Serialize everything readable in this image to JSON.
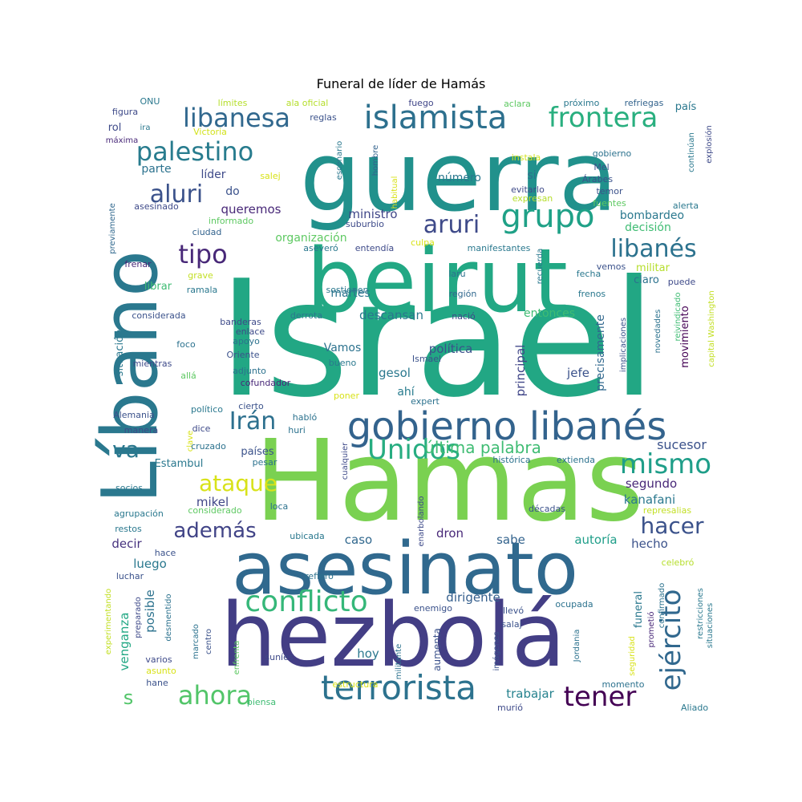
{
  "chart_data": {
    "type": "wordcloud",
    "title": "Funeral de líder de Hamás",
    "words": [
      {
        "text": "Israel",
        "weight": 100,
        "color": "#22a784"
      },
      {
        "text": "Hamas",
        "weight": 96,
        "color": "#7ad151"
      },
      {
        "text": "guerra",
        "weight": 90,
        "color": "#21918c"
      },
      {
        "text": "beirut",
        "weight": 86,
        "color": "#22a884"
      },
      {
        "text": "hezbolá",
        "weight": 84,
        "color": "#433e85"
      },
      {
        "text": "Líbano",
        "weight": 78,
        "color": "#2a788e"
      },
      {
        "text": "asesinato",
        "weight": 72,
        "color": "#30698e"
      },
      {
        "text": "gobierno libanés",
        "weight": 42,
        "color": "#33638d"
      },
      {
        "text": "terrorista",
        "weight": 40,
        "color": "#2c728e"
      },
      {
        "text": "islamista",
        "weight": 38,
        "color": "#2d708e"
      },
      {
        "text": "grupo",
        "weight": 36,
        "color": "#1fa187"
      },
      {
        "text": "conflicto",
        "weight": 33,
        "color": "#35b779"
      },
      {
        "text": "frontera",
        "weight": 32,
        "color": "#29af7f"
      },
      {
        "text": "libanesa",
        "weight": 31,
        "color": "#31688e"
      },
      {
        "text": "palestino",
        "weight": 31,
        "color": "#287c8e"
      },
      {
        "text": "Unidos",
        "weight": 31,
        "color": "#27ad81"
      },
      {
        "text": "mismo",
        "weight": 31,
        "color": "#1f9e89"
      },
      {
        "text": "ahora",
        "weight": 30,
        "color": "#52c569"
      },
      {
        "text": "tener",
        "weight": 30,
        "color": "#440154"
      },
      {
        "text": "ejército",
        "weight": 30,
        "color": "#31688e"
      },
      {
        "text": "aluri",
        "weight": 28,
        "color": "#3b528b"
      },
      {
        "text": "aruri",
        "weight": 28,
        "color": "#3e4a89"
      },
      {
        "text": "tipo",
        "weight": 28,
        "color": "#482878"
      },
      {
        "text": "libanés",
        "weight": 27,
        "color": "#2c728e"
      },
      {
        "text": "Irán",
        "weight": 27,
        "color": "#2d708e"
      },
      {
        "text": "va",
        "weight": 27,
        "color": "#2a788e"
      },
      {
        "text": "ataque",
        "weight": 26,
        "color": "#d8e219"
      },
      {
        "text": "hacer",
        "weight": 26,
        "color": "#3b528b"
      },
      {
        "text": "además",
        "weight": 24,
        "color": "#414487"
      },
      {
        "text": "s",
        "weight": 24,
        "color": "#52c569"
      },
      {
        "text": "última palabra",
        "weight": 20,
        "color": "#3fbc73"
      },
      {
        "text": "sucesor",
        "weight": 16,
        "color": "#3b528b"
      },
      {
        "text": "segundo",
        "weight": 15,
        "color": "#482878"
      },
      {
        "text": "kanafani",
        "weight": 15,
        "color": "#2a788e"
      },
      {
        "text": "hecho",
        "weight": 15,
        "color": "#3b528b"
      },
      {
        "text": "autoría",
        "weight": 15,
        "color": "#1f9e89"
      },
      {
        "text": "dron",
        "weight": 15,
        "color": "#482878"
      },
      {
        "text": "caso",
        "weight": 15,
        "color": "#31688e"
      },
      {
        "text": "sabe",
        "weight": 15,
        "color": "#33638d"
      },
      {
        "text": "dirigente",
        "weight": 15,
        "color": "#355f8d"
      },
      {
        "text": "mikel",
        "weight": 15,
        "color": "#404688"
      },
      {
        "text": "decir",
        "weight": 15,
        "color": "#46327e"
      },
      {
        "text": "luego",
        "weight": 15,
        "color": "#2a788e"
      },
      {
        "text": "posible",
        "weight": 15,
        "color": "#2c728e"
      },
      {
        "text": "venganza",
        "weight": 15,
        "color": "#22a884"
      },
      {
        "text": "hoy",
        "weight": 15,
        "color": "#2a788e"
      },
      {
        "text": "trabajar",
        "weight": 15,
        "color": "#26828e"
      },
      {
        "text": "aumenta",
        "weight": 12,
        "color": "#3b528b"
      },
      {
        "text": "gesol",
        "weight": 15,
        "color": "#2a788e"
      },
      {
        "text": "ahí",
        "weight": 14,
        "color": "#287c8e"
      },
      {
        "text": "política",
        "weight": 15,
        "color": "#3b528b"
      },
      {
        "text": "Vamos",
        "weight": 14,
        "color": "#2c728e"
      },
      {
        "text": "descansan",
        "weight": 15,
        "color": "#2a788e"
      },
      {
        "text": "entonces",
        "weight": 14,
        "color": "#3fbc73"
      },
      {
        "text": "martes",
        "weight": 14,
        "color": "#2c728e"
      },
      {
        "text": "ministro",
        "weight": 15,
        "color": "#404688"
      },
      {
        "text": "queremos",
        "weight": 15,
        "color": "#482878"
      },
      {
        "text": "organización",
        "weight": 14,
        "color": "#5ec962"
      },
      {
        "text": "número",
        "weight": 14,
        "color": "#2a788e"
      },
      {
        "text": "si",
        "weight": 14,
        "color": "#2d708e"
      },
      {
        "text": "líder",
        "weight": 14,
        "color": "#3e4a89"
      },
      {
        "text": "parte",
        "weight": 14,
        "color": "#2c728e"
      },
      {
        "text": "do",
        "weight": 14,
        "color": "#3b528b"
      },
      {
        "text": "principal",
        "weight": 15,
        "color": "#404688"
      },
      {
        "text": "precisamente",
        "weight": 14,
        "color": "#31688e"
      },
      {
        "text": "movimiento",
        "weight": 13,
        "color": "#440154"
      },
      {
        "text": "jefe",
        "weight": 15,
        "color": "#3b528b"
      },
      {
        "text": "decisión",
        "weight": 14,
        "color": "#3fbc73"
      },
      {
        "text": "bombardeo",
        "weight": 14,
        "color": "#2a788e"
      },
      {
        "text": "militar",
        "weight": 13,
        "color": "#b5de2b"
      },
      {
        "text": "claro",
        "weight": 13,
        "color": "#2c728e"
      },
      {
        "text": "librar",
        "weight": 13,
        "color": "#3fbc73"
      },
      {
        "text": "Estambul",
        "weight": 13,
        "color": "#2a788e"
      },
      {
        "text": "países",
        "weight": 13,
        "color": "#3b528b"
      },
      {
        "text": "funeral",
        "weight": 13,
        "color": "#2a788e"
      },
      {
        "text": "situación",
        "weight": 13,
        "color": "#2a788e"
      },
      {
        "text": "considerada",
        "weight": 11,
        "color": "#3b528b"
      },
      {
        "text": "mientras",
        "weight": 11,
        "color": "#3e4a89"
      },
      {
        "text": "frenar",
        "weight": 11,
        "color": "#482878"
      },
      {
        "text": "ramala",
        "weight": 11,
        "color": "#2a788e"
      },
      {
        "text": "grave",
        "weight": 11,
        "color": "#c2df23"
      },
      {
        "text": "ciudad",
        "weight": 11,
        "color": "#33638d"
      },
      {
        "text": "asesinado",
        "weight": 11,
        "color": "#3e4a89"
      },
      {
        "text": "informado",
        "weight": 11,
        "color": "#5ec962"
      },
      {
        "text": "previamente",
        "weight": 10,
        "color": "#31688e"
      },
      {
        "text": "figura",
        "weight": 11,
        "color": "#3e4a89"
      },
      {
        "text": "rol",
        "weight": 13,
        "color": "#3e4a89"
      },
      {
        "text": "ira",
        "weight": 10,
        "color": "#2a788e"
      },
      {
        "text": "máxima",
        "weight": 10,
        "color": "#482878"
      },
      {
        "text": "Victoria",
        "weight": 11,
        "color": "#d2e21b"
      },
      {
        "text": "ONU",
        "weight": 11,
        "color": "#2a788e"
      },
      {
        "text": "límites",
        "weight": 11,
        "color": "#b5de2b"
      },
      {
        "text": "ala oficial",
        "weight": 11,
        "color": "#b5de2b"
      },
      {
        "text": "reglas",
        "weight": 11,
        "color": "#3b528b"
      },
      {
        "text": "fuego",
        "weight": 11,
        "color": "#404688"
      },
      {
        "text": "aclara",
        "weight": 11,
        "color": "#5ec962"
      },
      {
        "text": "próximo",
        "weight": 11,
        "color": "#2a788e"
      },
      {
        "text": "refriegas",
        "weight": 11,
        "color": "#33638d"
      },
      {
        "text": "país",
        "weight": 13,
        "color": "#2a788e"
      },
      {
        "text": "continúan",
        "weight": 10,
        "color": "#2a788e"
      },
      {
        "text": "explosión",
        "weight": 10,
        "color": "#3e4a89"
      },
      {
        "text": "alerta",
        "weight": 11,
        "color": "#2a788e"
      },
      {
        "text": "Árabes",
        "weight": 11,
        "color": "#3b528b"
      },
      {
        "text": "Mel",
        "weight": 11,
        "color": "#3b528b"
      },
      {
        "text": "gobierno",
        "weight": 11,
        "color": "#2c728e"
      },
      {
        "text": "temor",
        "weight": 11,
        "color": "#3b528b"
      },
      {
        "text": "fuentes",
        "weight": 11,
        "color": "#5ec962"
      },
      {
        "text": "instala",
        "weight": 11,
        "color": "#d2e21b"
      },
      {
        "text": "evitarlo",
        "weight": 11,
        "color": "#3e4a89"
      },
      {
        "text": "expresan",
        "weight": 11,
        "color": "#b5de2b"
      },
      {
        "text": "escenario",
        "weight": 10,
        "color": "#2a788e"
      },
      {
        "text": "hombre",
        "weight": 10,
        "color": "#33638d"
      },
      {
        "text": "habitual",
        "weight": 10,
        "color": "#d8e219"
      },
      {
        "text": "suburbio",
        "weight": 11,
        "color": "#3e4a89"
      },
      {
        "text": "salej",
        "weight": 11,
        "color": "#d8e219"
      },
      {
        "text": "culpa",
        "weight": 11,
        "color": "#d8e219"
      },
      {
        "text": "aseveró",
        "weight": 11,
        "color": "#2a788e"
      },
      {
        "text": "entendía",
        "weight": 11,
        "color": "#3e4a89"
      },
      {
        "text": "manifestantes",
        "weight": 11,
        "color": "#2a788e"
      },
      {
        "text": "recuerda",
        "weight": 10,
        "color": "#2a788e"
      },
      {
        "text": "laru",
        "weight": 11,
        "color": "#2c728e"
      },
      {
        "text": "región",
        "weight": 11,
        "color": "#31688e"
      },
      {
        "text": "sostienen",
        "weight": 11,
        "color": "#2a788e"
      },
      {
        "text": "nació",
        "weight": 11,
        "color": "#3e4a89"
      },
      {
        "text": "derrota",
        "weight": 11,
        "color": "#2a788e"
      },
      {
        "text": "fecha",
        "weight": 11,
        "color": "#2a788e"
      },
      {
        "text": "vemos",
        "weight": 11,
        "color": "#3b528b"
      },
      {
        "text": "frenos",
        "weight": 11,
        "color": "#2a788e"
      },
      {
        "text": "puede",
        "weight": 11,
        "color": "#3e4a89"
      },
      {
        "text": "capital Washington",
        "weight": 10,
        "color": "#c2df23"
      },
      {
        "text": "reivindicado",
        "weight": 10,
        "color": "#3fbc73"
      },
      {
        "text": "novedades",
        "weight": 10,
        "color": "#2c728e"
      },
      {
        "text": "implicaciones",
        "weight": 10,
        "color": "#3b528b"
      },
      {
        "text": "banderas",
        "weight": 11,
        "color": "#3e4a89"
      },
      {
        "text": "enlace",
        "weight": 11,
        "color": "#3e4a89"
      },
      {
        "text": "apoyo",
        "weight": 11,
        "color": "#2c728e"
      },
      {
        "text": "Oriente",
        "weight": 11,
        "color": "#3b528b"
      },
      {
        "text": "foco",
        "weight": 11,
        "color": "#2c728e"
      },
      {
        "text": "allá",
        "weight": 11,
        "color": "#5ec962"
      },
      {
        "text": "adjunto",
        "weight": 11,
        "color": "#2c728e"
      },
      {
        "text": "cofundador",
        "weight": 11,
        "color": "#482878"
      },
      {
        "text": "Ismael",
        "weight": 11,
        "color": "#3b528b"
      },
      {
        "text": "bueno",
        "weight": 11,
        "color": "#2a788e"
      },
      {
        "text": "poner",
        "weight": 11,
        "color": "#d8e219"
      },
      {
        "text": "expert",
        "weight": 11,
        "color": "#2c728e"
      },
      {
        "text": "político",
        "weight": 11,
        "color": "#2a788e"
      },
      {
        "text": "Alemania",
        "weight": 11,
        "color": "#3b528b"
      },
      {
        "text": "habló",
        "weight": 11,
        "color": "#2c728e"
      },
      {
        "text": "cierto",
        "weight": 11,
        "color": "#3b528b"
      },
      {
        "text": "manera",
        "weight": 11,
        "color": "#3e4a89"
      },
      {
        "text": "dice",
        "weight": 11,
        "color": "#3e4a89"
      },
      {
        "text": "huri",
        "weight": 11,
        "color": "#2c728e"
      },
      {
        "text": "clave",
        "weight": 10,
        "color": "#d8e219"
      },
      {
        "text": "cruzado",
        "weight": 11,
        "color": "#2c728e"
      },
      {
        "text": "pesar",
        "weight": 11,
        "color": "#2c728e"
      },
      {
        "text": "cualquier",
        "weight": 10,
        "color": "#3e4a89"
      },
      {
        "text": "histórica",
        "weight": 11,
        "color": "#2c728e"
      },
      {
        "text": "extienda",
        "weight": 11,
        "color": "#2c728e"
      },
      {
        "text": "socios",
        "weight": 11,
        "color": "#2a788e"
      },
      {
        "text": "agrupación",
        "weight": 11,
        "color": "#2a788e"
      },
      {
        "text": "considerado",
        "weight": 11,
        "color": "#5ec962"
      },
      {
        "text": "loca",
        "weight": 11,
        "color": "#2c728e"
      },
      {
        "text": "enarbolando",
        "weight": 10,
        "color": "#3e4a89"
      },
      {
        "text": "décadas",
        "weight": 11,
        "color": "#3b528b"
      },
      {
        "text": "represalias",
        "weight": 11,
        "color": "#c2df23"
      },
      {
        "text": "restos",
        "weight": 11,
        "color": "#2a788e"
      },
      {
        "text": "ubicada",
        "weight": 11,
        "color": "#2a788e"
      },
      {
        "text": "hace",
        "weight": 11,
        "color": "#3b528b"
      },
      {
        "text": "celebró",
        "weight": 11,
        "color": "#b5de2b"
      },
      {
        "text": "luchar",
        "weight": 11,
        "color": "#3b528b"
      },
      {
        "text": "refiero",
        "weight": 11,
        "color": "#2c728e"
      },
      {
        "text": "experimentando",
        "weight": 10,
        "color": "#c2df23"
      },
      {
        "text": "preparado",
        "weight": 10,
        "color": "#3e4a89"
      },
      {
        "text": "desmentido",
        "weight": 10,
        "color": "#2c728e"
      },
      {
        "text": "enemigo",
        "weight": 11,
        "color": "#3b528b"
      },
      {
        "text": "ocupada",
        "weight": 11,
        "color": "#2c728e"
      },
      {
        "text": "llevó",
        "weight": 11,
        "color": "#3b528b"
      },
      {
        "text": "salaj",
        "weight": 11,
        "color": "#3b528b"
      },
      {
        "text": "confirmado",
        "weight": 10,
        "color": "#2c728e"
      },
      {
        "text": "prometió",
        "weight": 10,
        "color": "#482878"
      },
      {
        "text": "seguridad",
        "weight": 10,
        "color": "#d8e219"
      },
      {
        "text": "restricciones",
        "weight": 10,
        "color": "#2a788e"
      },
      {
        "text": "situaciones",
        "weight": 10,
        "color": "#2a788e"
      },
      {
        "text": "marcado",
        "weight": 10,
        "color": "#2c728e"
      },
      {
        "text": "centro",
        "weight": 10,
        "color": "#3b528b"
      },
      {
        "text": "enfrenta",
        "weight": 10,
        "color": "#5ec962"
      },
      {
        "text": "militante",
        "weight": 10,
        "color": "#2c728e"
      },
      {
        "text": "imágenes",
        "weight": 10,
        "color": "#3b528b"
      },
      {
        "text": "Jordania",
        "weight": 10,
        "color": "#2c728e"
      },
      {
        "text": "varios",
        "weight": 11,
        "color": "#3e4a89"
      },
      {
        "text": "asunto",
        "weight": 11,
        "color": "#d8e219"
      },
      {
        "text": "hane",
        "weight": 11,
        "color": "#3b528b"
      },
      {
        "text": "suníes",
        "weight": 11,
        "color": "#3e4a89"
      },
      {
        "text": "estructura",
        "weight": 11,
        "color": "#d8e219"
      },
      {
        "text": "piensa",
        "weight": 11,
        "color": "#3fbc73"
      },
      {
        "text": "murió",
        "weight": 11,
        "color": "#3e4a89"
      },
      {
        "text": "momento",
        "weight": 11,
        "color": "#2c728e"
      },
      {
        "text": "Aliado",
        "weight": 11,
        "color": "#2a788e"
      }
    ]
  }
}
